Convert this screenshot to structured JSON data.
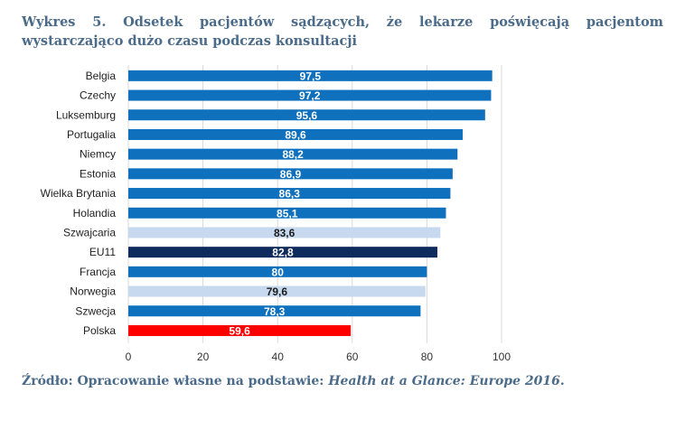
{
  "title": "Wykres 5. Odsetek pacjentów sądzących, że lekarze poświęcają pacjentom wystarczająco dużo czasu podczas konsultacji",
  "source": {
    "prefix": "Źródło: Opracowanie własne na podstawie: ",
    "work": "Health at a Glance: Europe 2016",
    "suffix": "."
  },
  "colors": {
    "default": "#0f71bd",
    "highlight_light": "#c6d9ef",
    "eu11": "#0f2a5c",
    "polska": "#ff0000",
    "label_on_dark": "#ffffff",
    "label_on_light": "#1a1a1a"
  },
  "chart_data": {
    "type": "bar",
    "orientation": "horizontal",
    "categories": [
      "Belgia",
      "Czechy",
      "Luksemburg",
      "Portugalia",
      "Niemcy",
      "Estonia",
      "Wielka Brytania",
      "Holandia",
      "Szwajcaria",
      "EU11",
      "Francja",
      "Norwegia",
      "Szwecja",
      "Polska"
    ],
    "values": [
      97.5,
      97.2,
      95.6,
      89.6,
      88.2,
      86.9,
      86.3,
      85.1,
      83.6,
      82.8,
      80,
      79.6,
      78.3,
      59.6
    ],
    "value_labels": [
      "97,5",
      "97,2",
      "95,6",
      "89,6",
      "88,2",
      "86,9",
      "86,3",
      "85,1",
      "83,6",
      "82,8",
      "80",
      "79,6",
      "78,3",
      "59,6"
    ],
    "bar_styles": [
      "default",
      "default",
      "default",
      "default",
      "default",
      "default",
      "default",
      "default",
      "highlight_light",
      "eu11",
      "default",
      "highlight_light",
      "default",
      "polska"
    ],
    "xlim": [
      0,
      100
    ],
    "xticks": [
      0,
      20,
      40,
      60,
      80,
      100
    ],
    "grid": "vertical",
    "legend": "none"
  }
}
